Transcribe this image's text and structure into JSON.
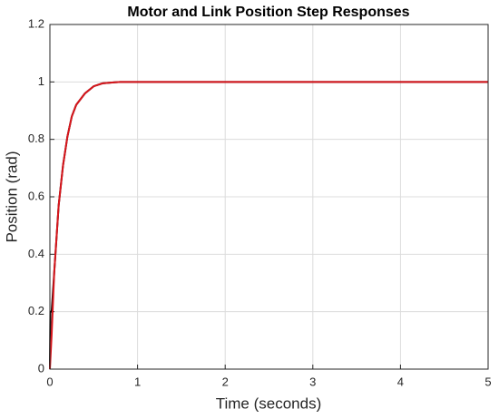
{
  "chart_data": {
    "type": "line",
    "title": "Motor and Link Position Step Responses",
    "x_label": "Time (seconds)",
    "y_label": "Position (rad)",
    "series": [
      {
        "color": "#000000",
        "x": [
          0,
          0.005,
          0.02,
          0.05,
          0.1,
          0.15,
          0.2,
          0.25,
          0.3,
          0.4,
          0.5,
          0.6,
          0.8,
          1,
          2,
          3,
          4,
          5
        ],
        "values": [
          0,
          0.2,
          0.2,
          0.34,
          0.57,
          0.71,
          0.81,
          0.88,
          0.92,
          0.96,
          0.985,
          0.995,
          1,
          1,
          1,
          1,
          1,
          1
        ]
      },
      {
        "color": "#d9161c",
        "x": [
          0,
          0.02,
          0.05,
          0.1,
          0.15,
          0.2,
          0.25,
          0.3,
          0.4,
          0.5,
          0.6,
          0.8,
          1,
          2,
          3,
          4,
          5
        ],
        "values": [
          0,
          0.12,
          0.34,
          0.57,
          0.71,
          0.81,
          0.88,
          0.92,
          0.96,
          0.985,
          0.995,
          1,
          1,
          1,
          1,
          1,
          1
        ]
      }
    ],
    "xlim": [
      0,
      5
    ],
    "xticks": [
      0,
      1,
      2,
      3,
      4,
      5
    ],
    "ylim": [
      0,
      1.2
    ],
    "yticks": [
      0,
      0.2,
      0.4,
      0.6,
      0.8,
      1,
      1.2
    ],
    "grid": true
  }
}
